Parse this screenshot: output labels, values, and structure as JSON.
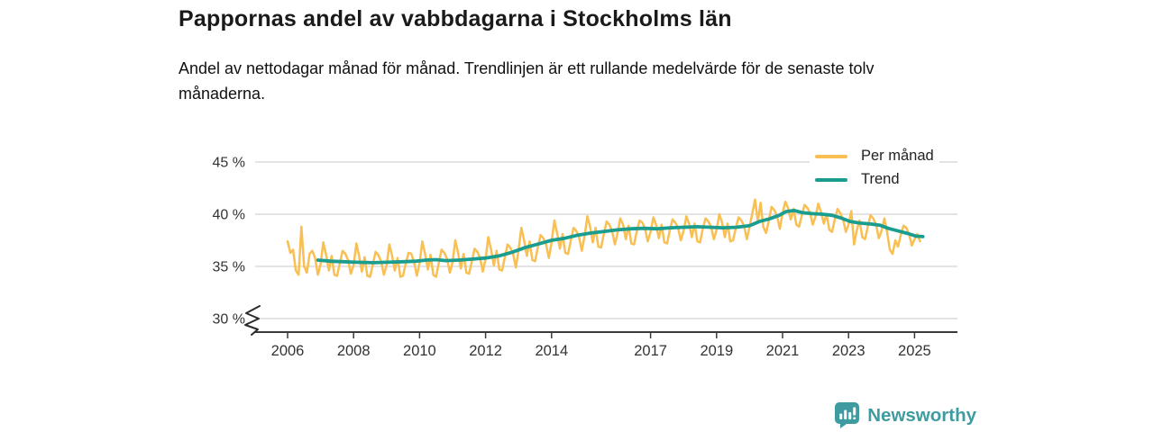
{
  "title": "Pappornas andel av vabbdagarna i Stockholms län",
  "subtitle": "Andel av nettodagar månad för månad. Trendlinjen är ett rullande medelvärde för de senaste tolv månaderna.",
  "footer": {
    "brand": "Newsworthy"
  },
  "colors": {
    "per_month_line": "#f9bf53",
    "trend_line": "#1a9d8f",
    "grid": "#dcdcdc",
    "axis": "#3a3a3a",
    "tick_text": "#333333",
    "brand_teal": "#3e9ca1"
  },
  "chart_data": {
    "type": "line",
    "title": "Pappornas andel av vabbdagarna i Stockholms län",
    "xlabel": "",
    "ylabel": "",
    "unit": "%",
    "grid": "horizontal",
    "axis_break_at_bottom": true,
    "legend_position": "top-right",
    "x_range": [
      2006,
      2025.25
    ],
    "ylim": [
      30,
      46.5
    ],
    "y_axis": {
      "ticks": [
        45,
        40,
        35,
        30
      ],
      "labels": [
        "45 %",
        "40 %",
        "35 %",
        "30 %"
      ]
    },
    "x_axis": {
      "ticks": [
        2006,
        2008,
        2010,
        2012,
        2014,
        2017,
        2019,
        2021,
        2023,
        2025
      ],
      "labels": [
        "2006",
        "2008",
        "2010",
        "2012",
        "2014",
        "2017",
        "2019",
        "2021",
        "2023",
        "2025"
      ]
    },
    "legend": [
      {
        "label": "Per månad",
        "color": "#f9bf53"
      },
      {
        "label": "Trend",
        "color": "#1a9d8f"
      }
    ],
    "series": [
      {
        "name": "Per månad",
        "color": "#f9bf53",
        "kind": "monthly",
        "start": "2006-01",
        "end": "2025-03",
        "values": [
          37.4,
          36.3,
          36.6,
          34.6,
          34.2,
          38.8,
          35.0,
          34.4,
          36.2,
          36.5,
          35.8,
          34.2,
          35.2,
          37.3,
          36.1,
          34.6,
          36.0,
          34.2,
          34.1,
          35.3,
          36.5,
          36.2,
          35.6,
          34.3,
          35.1,
          37.2,
          36.0,
          34.5,
          35.9,
          34.1,
          34.0,
          35.2,
          36.4,
          36.1,
          35.5,
          34.2,
          35.1,
          37.1,
          36.0,
          34.6,
          35.8,
          34.0,
          34.1,
          35.3,
          36.3,
          36.2,
          35.4,
          34.1,
          35.3,
          37.4,
          36.2,
          34.7,
          36.1,
          34.2,
          34.0,
          35.4,
          36.6,
          36.3,
          35.7,
          34.4,
          35.4,
          37.5,
          36.3,
          34.8,
          36.2,
          34.4,
          34.3,
          35.5,
          36.7,
          36.4,
          35.8,
          34.5,
          35.7,
          37.8,
          36.6,
          35.1,
          36.5,
          34.7,
          34.6,
          35.9,
          37.1,
          36.8,
          36.2,
          34.9,
          36.6,
          38.7,
          37.5,
          36.0,
          37.4,
          35.6,
          35.5,
          36.8,
          38.0,
          37.7,
          37.1,
          35.8,
          37.3,
          39.4,
          38.2,
          36.7,
          38.1,
          36.3,
          36.2,
          37.5,
          38.7,
          38.4,
          37.8,
          36.5,
          37.9,
          39.8,
          38.8,
          37.3,
          38.7,
          36.9,
          36.8,
          38.1,
          39.3,
          39.0,
          38.4,
          37.1,
          38.2,
          39.6,
          39.0,
          37.6,
          38.9,
          37.2,
          37.1,
          38.4,
          39.4,
          39.2,
          38.6,
          37.4,
          38.3,
          39.7,
          39.0,
          37.7,
          39.0,
          37.3,
          37.2,
          38.5,
          39.5,
          39.2,
          38.7,
          37.5,
          38.4,
          39.8,
          39.1,
          37.8,
          39.1,
          37.4,
          37.3,
          38.6,
          39.6,
          39.3,
          38.8,
          37.6,
          38.5,
          40.0,
          39.2,
          37.8,
          39.1,
          37.4,
          37.5,
          38.7,
          39.7,
          39.4,
          38.9,
          37.6,
          38.8,
          40.1,
          41.4,
          39.3,
          41.1,
          38.8,
          38.2,
          39.4,
          40.7,
          40.4,
          39.8,
          38.6,
          40.1,
          41.2,
          40.6,
          39.5,
          40.5,
          39.0,
          38.8,
          39.9,
          40.9,
          40.6,
          40.1,
          39.0,
          39.8,
          41.0,
          40.2,
          39.1,
          40.0,
          38.5,
          38.3,
          39.5,
          40.5,
          40.1,
          39.5,
          38.3,
          39.0,
          40.3,
          37.1,
          38.5,
          39.4,
          37.8,
          37.6,
          38.8,
          39.9,
          39.6,
          39.0,
          37.7,
          38.4,
          39.6,
          38.3,
          36.6,
          36.2,
          37.5,
          36.9,
          38.0,
          38.9,
          38.7,
          38.1,
          37.0,
          37.6,
          38.1,
          37.4
        ]
      },
      {
        "name": "Trend",
        "color": "#1a9d8f",
        "kind": "rolling-mean-12m",
        "points": [
          [
            2006.92,
            35.6
          ],
          [
            2007.3,
            35.5
          ],
          [
            2007.7,
            35.45
          ],
          [
            2008.1,
            35.4
          ],
          [
            2008.6,
            35.35
          ],
          [
            2009.0,
            35.4
          ],
          [
            2009.5,
            35.45
          ],
          [
            2009.9,
            35.5
          ],
          [
            2010.2,
            35.6
          ],
          [
            2010.5,
            35.65
          ],
          [
            2010.8,
            35.55
          ],
          [
            2011.2,
            35.6
          ],
          [
            2011.6,
            35.7
          ],
          [
            2012.0,
            35.8
          ],
          [
            2012.4,
            36.0
          ],
          [
            2012.8,
            36.35
          ],
          [
            2013.2,
            36.8
          ],
          [
            2013.6,
            37.15
          ],
          [
            2014.0,
            37.5
          ],
          [
            2014.4,
            37.7
          ],
          [
            2014.8,
            38.0
          ],
          [
            2015.2,
            38.2
          ],
          [
            2015.6,
            38.35
          ],
          [
            2016.0,
            38.5
          ],
          [
            2016.4,
            38.6
          ],
          [
            2016.8,
            38.65
          ],
          [
            2017.2,
            38.6
          ],
          [
            2017.6,
            38.7
          ],
          [
            2018.0,
            38.75
          ],
          [
            2018.4,
            38.8
          ],
          [
            2018.8,
            38.75
          ],
          [
            2019.2,
            38.7
          ],
          [
            2019.6,
            38.75
          ],
          [
            2020.0,
            38.9
          ],
          [
            2020.3,
            39.3
          ],
          [
            2020.6,
            39.55
          ],
          [
            2020.9,
            39.9
          ],
          [
            2021.1,
            40.25
          ],
          [
            2021.35,
            40.35
          ],
          [
            2021.6,
            40.15
          ],
          [
            2021.9,
            40.05
          ],
          [
            2022.2,
            40.0
          ],
          [
            2022.5,
            39.9
          ],
          [
            2022.8,
            39.6
          ],
          [
            2023.05,
            39.3
          ],
          [
            2023.35,
            39.15
          ],
          [
            2023.7,
            39.05
          ],
          [
            2023.95,
            38.95
          ],
          [
            2024.2,
            38.65
          ],
          [
            2024.5,
            38.4
          ],
          [
            2024.8,
            38.15
          ],
          [
            2025.05,
            37.9
          ],
          [
            2025.25,
            37.85
          ]
        ]
      }
    ]
  }
}
